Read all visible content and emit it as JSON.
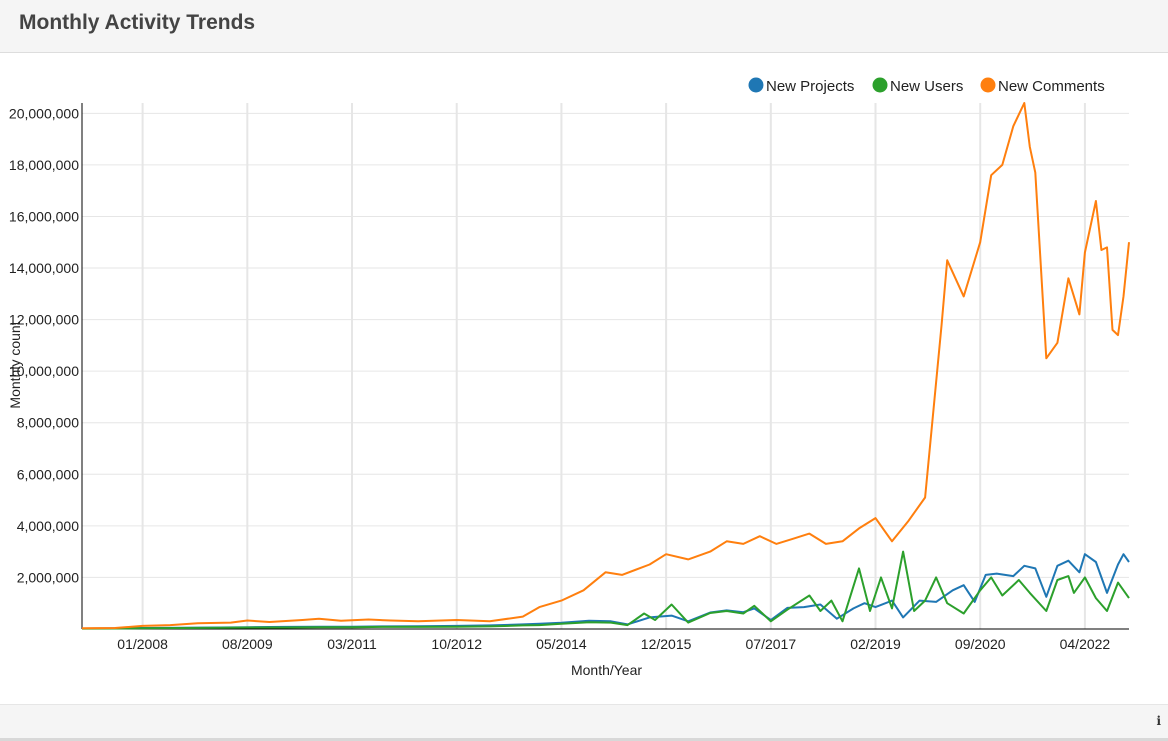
{
  "panel": {
    "title": "Monthly Activity Trends",
    "info_icon": "info-icon"
  },
  "colors": {
    "new_projects": "#1f77b4",
    "new_users": "#2ca02c",
    "new_comments": "#ff7f0e",
    "grid": "#e6e6e6",
    "axis": "#000000"
  },
  "chart_data": {
    "type": "line",
    "xlabel": "Month/Year",
    "ylabel": "Monthly count",
    "x_tick_labels": [
      "01/2008",
      "08/2009",
      "03/2011",
      "10/2012",
      "05/2014",
      "12/2015",
      "07/2017",
      "02/2019",
      "09/2020",
      "04/2022"
    ],
    "y_tick_labels": [
      "2,000,000",
      "4,000,000",
      "6,000,000",
      "8,000,000",
      "10,000,000",
      "12,000,000",
      "14,000,000",
      "16,000,000",
      "18,000,000",
      "20,000,000"
    ],
    "y_ticks": [
      2000000,
      4000000,
      6000000,
      8000000,
      10000000,
      12000000,
      14000000,
      16000000,
      18000000,
      20000000
    ],
    "ylim": [
      0,
      20400000
    ],
    "xlim": [
      "2007-02",
      "2022-12"
    ],
    "legend_position": "top-right",
    "grid": true,
    "series": [
      {
        "name": "New Projects",
        "color_key": "new_projects",
        "points": [
          [
            "2007-02",
            20000
          ],
          [
            "2007-08",
            30000
          ],
          [
            "2008-01",
            40000
          ],
          [
            "2008-08",
            50000
          ],
          [
            "2009-03",
            60000
          ],
          [
            "2009-08",
            70000
          ],
          [
            "2010-03",
            80000
          ],
          [
            "2010-09",
            90000
          ],
          [
            "2011-03",
            90000
          ],
          [
            "2011-09",
            100000
          ],
          [
            "2012-03",
            110000
          ],
          [
            "2012-10",
            120000
          ],
          [
            "2013-04",
            140000
          ],
          [
            "2013-10",
            180000
          ],
          [
            "2014-01",
            200000
          ],
          [
            "2014-05",
            240000
          ],
          [
            "2014-10",
            320000
          ],
          [
            "2015-02",
            300000
          ],
          [
            "2015-05",
            180000
          ],
          [
            "2015-09",
            450000
          ],
          [
            "2016-01",
            520000
          ],
          [
            "2016-04",
            300000
          ],
          [
            "2016-08",
            640000
          ],
          [
            "2016-11",
            720000
          ],
          [
            "2017-02",
            650000
          ],
          [
            "2017-04",
            800000
          ],
          [
            "2017-07",
            350000
          ],
          [
            "2017-10",
            820000
          ],
          [
            "2018-01",
            850000
          ],
          [
            "2018-04",
            950000
          ],
          [
            "2018-07",
            400000
          ],
          [
            "2018-10",
            800000
          ],
          [
            "2018-12",
            1000000
          ],
          [
            "2019-02",
            850000
          ],
          [
            "2019-05",
            1100000
          ],
          [
            "2019-07",
            450000
          ],
          [
            "2019-10",
            1100000
          ],
          [
            "2020-01",
            1050000
          ],
          [
            "2020-04",
            1500000
          ],
          [
            "2020-06",
            1700000
          ],
          [
            "2020-08",
            1050000
          ],
          [
            "2020-10",
            2100000
          ],
          [
            "2020-12",
            2150000
          ],
          [
            "2021-03",
            2050000
          ],
          [
            "2021-05",
            2450000
          ],
          [
            "2021-07",
            2350000
          ],
          [
            "2021-09",
            1250000
          ],
          [
            "2021-11",
            2450000
          ],
          [
            "2022-01",
            2650000
          ],
          [
            "2022-03",
            2200000
          ],
          [
            "2022-04",
            2900000
          ],
          [
            "2022-06",
            2600000
          ],
          [
            "2022-08",
            1400000
          ],
          [
            "2022-10",
            2500000
          ],
          [
            "2022-11",
            2900000
          ],
          [
            "2022-12",
            2600000
          ]
        ]
      },
      {
        "name": "New Users",
        "color_key": "new_users",
        "points": [
          [
            "2007-02",
            15000
          ],
          [
            "2007-08",
            20000
          ],
          [
            "2008-01",
            30000
          ],
          [
            "2008-08",
            40000
          ],
          [
            "2009-03",
            50000
          ],
          [
            "2009-08",
            60000
          ],
          [
            "2010-03",
            60000
          ],
          [
            "2010-09",
            70000
          ],
          [
            "2011-03",
            70000
          ],
          [
            "2011-09",
            80000
          ],
          [
            "2012-03",
            80000
          ],
          [
            "2012-10",
            90000
          ],
          [
            "2013-04",
            100000
          ],
          [
            "2013-10",
            140000
          ],
          [
            "2014-01",
            150000
          ],
          [
            "2014-05",
            200000
          ],
          [
            "2014-10",
            260000
          ],
          [
            "2015-02",
            250000
          ],
          [
            "2015-05",
            150000
          ],
          [
            "2015-08",
            600000
          ],
          [
            "2015-10",
            350000
          ],
          [
            "2016-01",
            950000
          ],
          [
            "2016-04",
            250000
          ],
          [
            "2016-08",
            620000
          ],
          [
            "2016-11",
            700000
          ],
          [
            "2017-02",
            600000
          ],
          [
            "2017-04",
            900000
          ],
          [
            "2017-07",
            300000
          ],
          [
            "2017-10",
            750000
          ],
          [
            "2018-02",
            1300000
          ],
          [
            "2018-04",
            700000
          ],
          [
            "2018-06",
            1100000
          ],
          [
            "2018-08",
            300000
          ],
          [
            "2018-11",
            2350000
          ],
          [
            "2019-01",
            700000
          ],
          [
            "2019-03",
            2000000
          ],
          [
            "2019-05",
            800000
          ],
          [
            "2019-07",
            3000000
          ],
          [
            "2019-09",
            700000
          ],
          [
            "2019-11",
            1100000
          ],
          [
            "2020-01",
            2000000
          ],
          [
            "2020-03",
            1000000
          ],
          [
            "2020-06",
            600000
          ],
          [
            "2020-09",
            1500000
          ],
          [
            "2020-11",
            2000000
          ],
          [
            "2021-01",
            1300000
          ],
          [
            "2021-04",
            1900000
          ],
          [
            "2021-06",
            1400000
          ],
          [
            "2021-09",
            700000
          ],
          [
            "2021-11",
            1900000
          ],
          [
            "2022-01",
            2050000
          ],
          [
            "2022-02",
            1400000
          ],
          [
            "2022-04",
            2000000
          ],
          [
            "2022-06",
            1200000
          ],
          [
            "2022-08",
            700000
          ],
          [
            "2022-10",
            1800000
          ],
          [
            "2022-12",
            1200000
          ]
        ]
      },
      {
        "name": "New Comments",
        "color_key": "new_comments",
        "points": [
          [
            "2007-02",
            30000
          ],
          [
            "2007-08",
            40000
          ],
          [
            "2008-01",
            120000
          ],
          [
            "2008-06",
            150000
          ],
          [
            "2008-11",
            220000
          ],
          [
            "2009-05",
            250000
          ],
          [
            "2009-08",
            330000
          ],
          [
            "2009-12",
            270000
          ],
          [
            "2010-06",
            350000
          ],
          [
            "2010-09",
            400000
          ],
          [
            "2011-01",
            320000
          ],
          [
            "2011-06",
            370000
          ],
          [
            "2011-10",
            330000
          ],
          [
            "2012-03",
            300000
          ],
          [
            "2012-10",
            350000
          ],
          [
            "2013-04",
            300000
          ],
          [
            "2013-10",
            480000
          ],
          [
            "2014-01",
            850000
          ],
          [
            "2014-05",
            1100000
          ],
          [
            "2014-09",
            1500000
          ],
          [
            "2015-01",
            2200000
          ],
          [
            "2015-04",
            2100000
          ],
          [
            "2015-09",
            2500000
          ],
          [
            "2015-12",
            2900000
          ],
          [
            "2016-04",
            2700000
          ],
          [
            "2016-08",
            3000000
          ],
          [
            "2016-11",
            3400000
          ],
          [
            "2017-02",
            3300000
          ],
          [
            "2017-05",
            3600000
          ],
          [
            "2017-08",
            3300000
          ],
          [
            "2017-11",
            3500000
          ],
          [
            "2018-02",
            3700000
          ],
          [
            "2018-05",
            3300000
          ],
          [
            "2018-08",
            3400000
          ],
          [
            "2018-11",
            3900000
          ],
          [
            "2019-02",
            4300000
          ],
          [
            "2019-05",
            3400000
          ],
          [
            "2019-08",
            4200000
          ],
          [
            "2019-11",
            5100000
          ],
          [
            "2020-02",
            11800000
          ],
          [
            "2020-03",
            14300000
          ],
          [
            "2020-06",
            12900000
          ],
          [
            "2020-09",
            15000000
          ],
          [
            "2020-11",
            17600000
          ],
          [
            "2021-01",
            18000000
          ],
          [
            "2021-03",
            19500000
          ],
          [
            "2021-05",
            20400000
          ],
          [
            "2021-06",
            18700000
          ],
          [
            "2021-07",
            17700000
          ],
          [
            "2021-09",
            10500000
          ],
          [
            "2021-11",
            11100000
          ],
          [
            "2022-01",
            13600000
          ],
          [
            "2022-03",
            12200000
          ],
          [
            "2022-04",
            14600000
          ],
          [
            "2022-06",
            16600000
          ],
          [
            "2022-07",
            14700000
          ],
          [
            "2022-08",
            14800000
          ],
          [
            "2022-09",
            11600000
          ],
          [
            "2022-10",
            11400000
          ],
          [
            "2022-11",
            12900000
          ],
          [
            "2022-12",
            15000000
          ]
        ]
      }
    ]
  }
}
